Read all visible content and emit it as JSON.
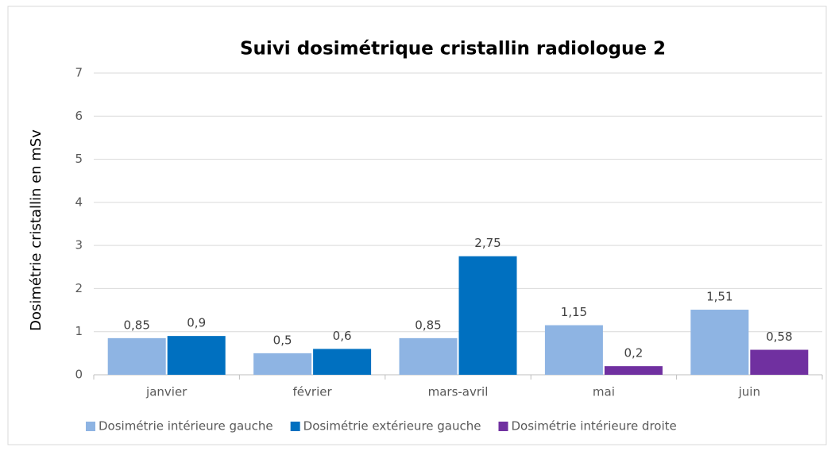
{
  "chart_data": {
    "type": "bar",
    "title": "Suivi dosimétrique cristallin radiologue 2",
    "y_label": "Dosimétrie cristallin en mSv",
    "categories": [
      "janvier",
      "février",
      "mars-avril",
      "mai",
      "juin"
    ],
    "series": [
      {
        "name": "Dosimétrie intérieure gauche",
        "color": "#8eb4e3",
        "values": [
          0.85,
          0.5,
          0.85,
          1.15,
          1.51
        ],
        "value_labels": [
          "0,85",
          "0,5",
          "0,85",
          "1,15",
          "1,51"
        ]
      },
      {
        "name": "Dosimétrie extérieure gauche",
        "color": "#0070c0",
        "values": [
          0.9,
          0.6,
          2.75,
          null,
          null
        ],
        "value_labels": [
          "0,9",
          "0,6",
          "2,75",
          null,
          null
        ]
      },
      {
        "name": "Dosimétrie intérieure droite",
        "color": "#7030a0",
        "values": [
          null,
          null,
          null,
          0.2,
          0.58
        ],
        "value_labels": [
          null,
          null,
          null,
          "0,2",
          "0,58"
        ]
      }
    ],
    "ylim": [
      0,
      7
    ],
    "yticks": [
      0,
      1,
      2,
      3,
      4,
      5,
      6,
      7
    ],
    "grid": true,
    "legend": "bottom"
  }
}
